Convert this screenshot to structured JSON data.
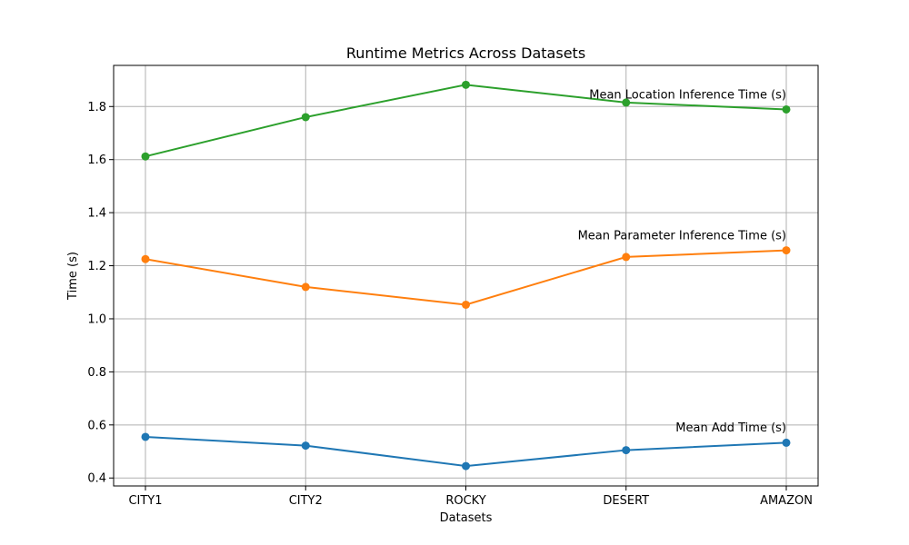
{
  "chart_data": {
    "type": "line",
    "title": "Runtime Metrics Across Datasets",
    "xlabel": "Datasets",
    "ylabel": "Time (s)",
    "categories": [
      "CITY1",
      "CITY2",
      "ROCKY",
      "DESERT",
      "AMAZON"
    ],
    "ylim": [
      0.37,
      1.955
    ],
    "yticks": [
      0.4,
      0.6,
      0.8,
      1.0,
      1.2,
      1.4,
      1.6,
      1.8
    ],
    "grid": true,
    "legend": "none",
    "series": [
      {
        "name": "Mean Add Time (s)",
        "color": "#1f77b4",
        "values": [
          0.555,
          0.522,
          0.445,
          0.505,
          0.533
        ]
      },
      {
        "name": "Mean Parameter Inference Time (s)",
        "color": "#ff7f0e",
        "values": [
          1.225,
          1.12,
          1.053,
          1.233,
          1.258
        ]
      },
      {
        "name": "Mean Location Inference Time (s)",
        "color": "#2ca02c",
        "values": [
          1.612,
          1.76,
          1.882,
          1.815,
          1.789
        ]
      }
    ],
    "annotations": [
      {
        "text": "Mean Location Inference Time (s)",
        "x": "AMAZON",
        "y": 1.845
      },
      {
        "text": "Mean Parameter Inference Time (s)",
        "x": "AMAZON",
        "y": 1.315
      },
      {
        "text": "Mean Add Time (s)",
        "x": "AMAZON",
        "y": 0.59
      }
    ]
  }
}
